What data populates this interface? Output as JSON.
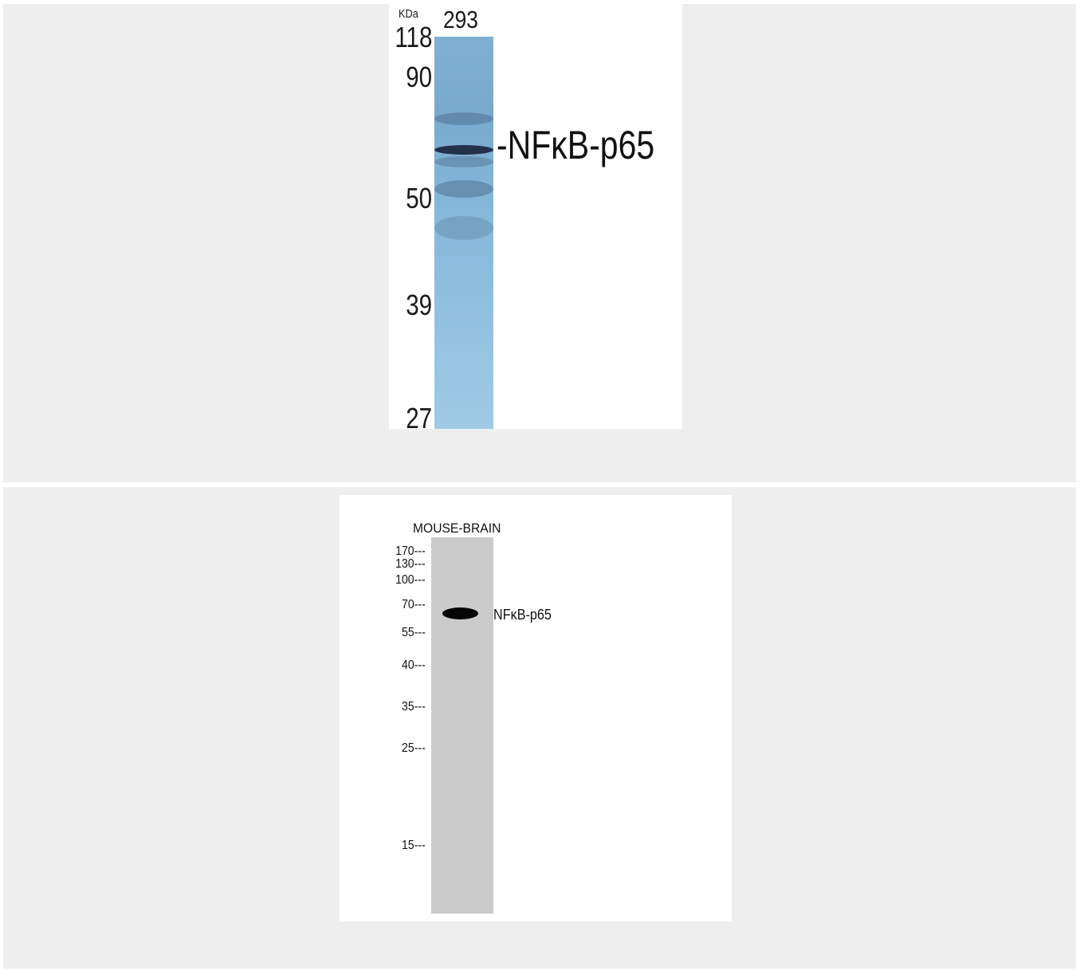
{
  "panels": [
    {
      "unit_label": "KDa",
      "lane_label": "293",
      "markers": [
        "118",
        "90",
        "50",
        "39",
        "27"
      ],
      "band_label": "-NFκB-p65",
      "colors": {
        "membrane": "#86b8da",
        "band": "#2a3a55"
      }
    },
    {
      "lane_label": "MOUSE-BRAIN",
      "markers": [
        "170---",
        "130---",
        "100---",
        "70---",
        "55---",
        "40---",
        "35---",
        "25---",
        "15---"
      ],
      "band_label": "NFκB-p65",
      "colors": {
        "membrane": "#cbcbcb",
        "band": "#050505"
      }
    }
  ]
}
